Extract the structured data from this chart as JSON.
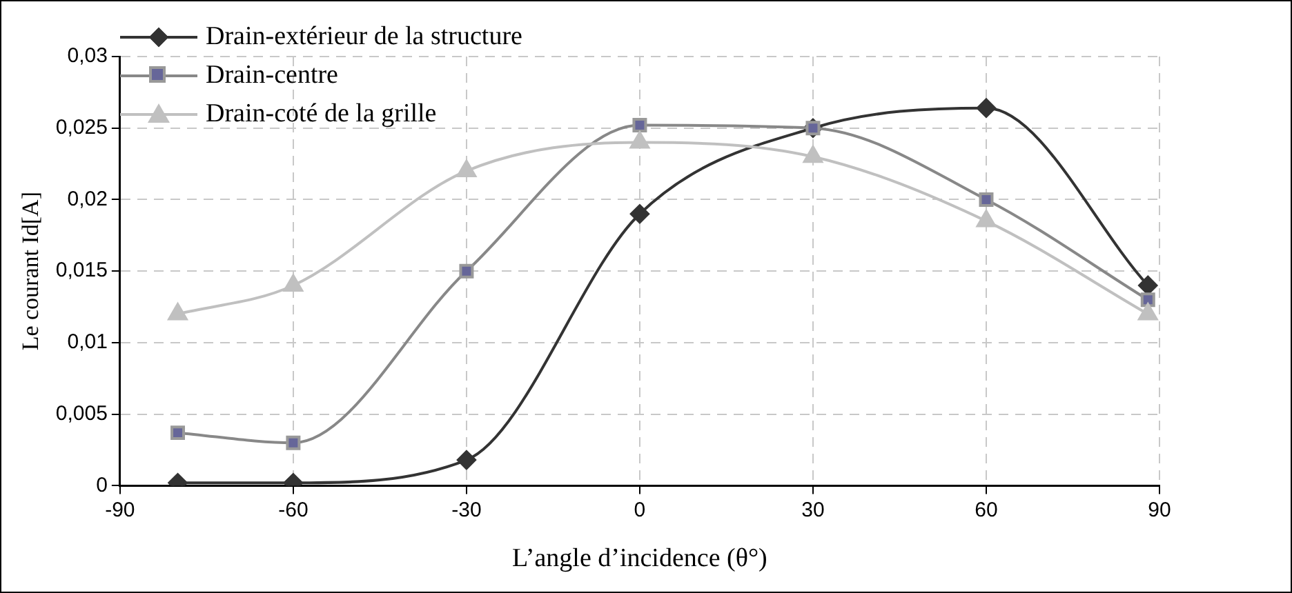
{
  "chart_data": {
    "type": "line",
    "xlabel": "L’angle d’incidence (θ°)",
    "ylabel": "Le courant Id[A]",
    "xlim": [
      -90,
      90
    ],
    "xticks": [
      -90,
      -60,
      -30,
      0,
      30,
      60,
      90
    ],
    "ylim": [
      0,
      0.03
    ],
    "yticks": [
      0,
      {
        "value": 0.005,
        "label": "0,005"
      },
      {
        "value": 0.01,
        "label": "0,01"
      },
      {
        "value": 0.015,
        "label": "0,015"
      },
      {
        "value": 0.02,
        "label": "0,02"
      },
      {
        "value": 0.025,
        "label": "0,025"
      },
      {
        "value": 0.03,
        "label": "0,03"
      }
    ],
    "grid": true,
    "legend": "top left",
    "series": [
      {
        "name": "Drain-extérieur de la structure",
        "color": "#333333",
        "marker": "diamond",
        "x": [
          -80,
          -60,
          -30,
          0,
          30,
          60,
          88
        ],
        "values": [
          0.0002,
          0.0002,
          0.0018,
          0.019,
          0.025,
          0.0264,
          0.014
        ]
      },
      {
        "name": "Drain-centre",
        "color": "#666699",
        "marker": "square",
        "x": [
          -80,
          -60,
          -30,
          0,
          30,
          60,
          88
        ],
        "values": [
          0.0037,
          0.003,
          0.015,
          0.0252,
          0.025,
          0.02,
          0.013
        ]
      },
      {
        "name": "Drain-coté de la grille",
        "color": "#c0c0c0",
        "marker": "triangle",
        "x": [
          -80,
          -60,
          -30,
          0,
          30,
          60,
          88
        ],
        "values": [
          0.012,
          0.014,
          0.022,
          0.024,
          0.023,
          0.0185,
          0.012
        ]
      }
    ]
  }
}
